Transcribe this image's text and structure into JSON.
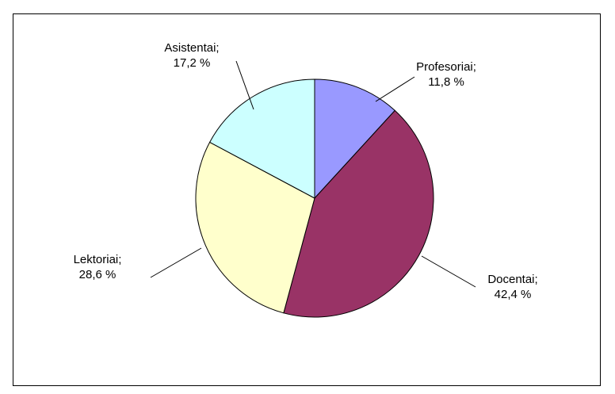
{
  "chart_data": {
    "type": "pie",
    "title": "",
    "slices": [
      {
        "label": "Profesoriai",
        "value": 11.8,
        "label_text": "11,8 %",
        "color": "#9999ff"
      },
      {
        "label": "Docentai",
        "value": 42.4,
        "label_text": "42,4 %",
        "color": "#993366"
      },
      {
        "label": "Lektoriai",
        "value": 28.6,
        "label_text": "28,6 %",
        "color": "#ffffcc"
      },
      {
        "label": "Asistentai",
        "value": 17.2,
        "label_text": "17,2 %",
        "color": "#ccffff"
      }
    ],
    "start_angle": "12 o'clock",
    "direction": "clockwise",
    "legend": "none",
    "slice_border_color": "#000000"
  }
}
